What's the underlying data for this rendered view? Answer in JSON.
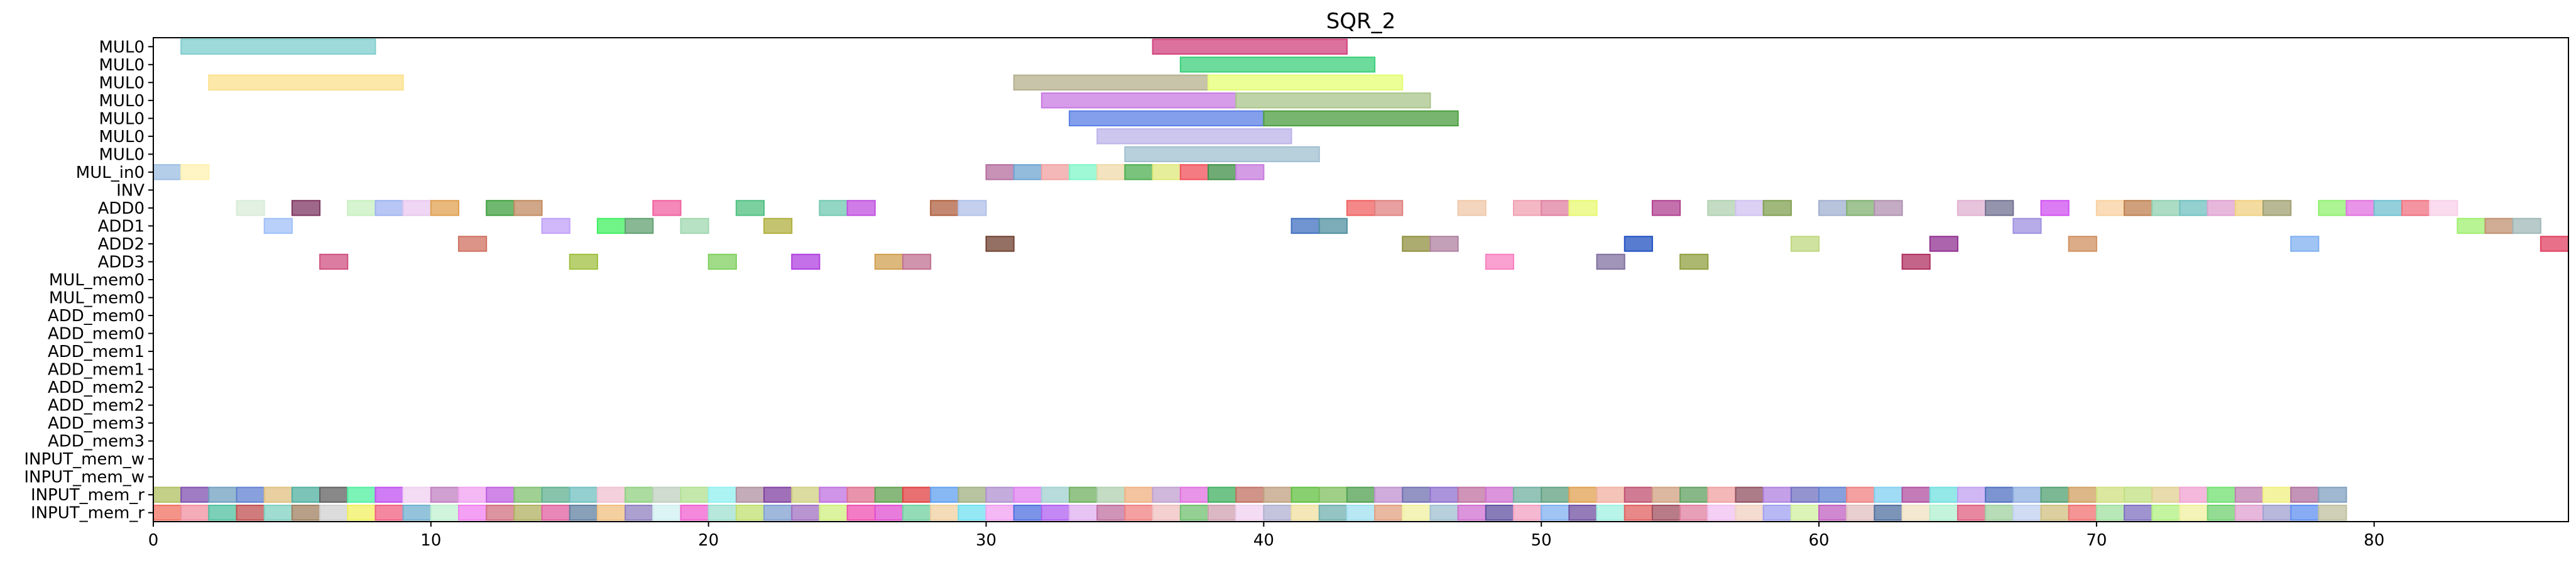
{
  "chart_data": {
    "type": "gantt",
    "title": "SQR_2",
    "xlabel": "",
    "ylabel": "",
    "xlim": [
      0,
      87
    ],
    "xticks": [
      0,
      10,
      20,
      30,
      40,
      50,
      60,
      70,
      80
    ],
    "grid": false,
    "rows": [
      "MUL0",
      "MUL0",
      "MUL0",
      "MUL0",
      "MUL0",
      "MUL0",
      "MUL0",
      "MUL_in0",
      "INV",
      "ADD0",
      "ADD1",
      "ADD2",
      "ADD3",
      "MUL_mem0",
      "MUL_mem0",
      "ADD_mem0",
      "ADD_mem0",
      "ADD_mem1",
      "ADD_mem1",
      "ADD_mem2",
      "ADD_mem2",
      "ADD_mem3",
      "ADD_mem3",
      "INPUT_mem_w",
      "INPUT_mem_w",
      "INPUT_mem_r",
      "INPUT_mem_r"
    ],
    "bars": [
      {
        "row": 0,
        "start": 1,
        "end": 8,
        "color": "#7fcdcd"
      },
      {
        "row": 0,
        "start": 36,
        "end": 43,
        "color": "#d1427e"
      },
      {
        "row": 1,
        "start": 37,
        "end": 44,
        "color": "#3ccf79"
      },
      {
        "row": 2,
        "start": 2,
        "end": 9,
        "color": "#fbe08c"
      },
      {
        "row": 2,
        "start": 31,
        "end": 38,
        "color": "#b6b08e"
      },
      {
        "row": 2,
        "start": 38,
        "end": 45,
        "color": "#e5fd73"
      },
      {
        "row": 3,
        "start": 32,
        "end": 39,
        "color": "#c87ae1"
      },
      {
        "row": 3,
        "start": 39,
        "end": 46,
        "color": "#a9c48b"
      },
      {
        "row": 4,
        "start": 33,
        "end": 40,
        "color": "#5a7fe6"
      },
      {
        "row": 4,
        "start": 40,
        "end": 47,
        "color": "#4b9e3f"
      },
      {
        "row": 5,
        "start": 34,
        "end": 41,
        "color": "#bcb3ea"
      },
      {
        "row": 6,
        "start": 35,
        "end": 42,
        "color": "#a0bfd0"
      },
      {
        "row": 7,
        "start": 0,
        "end": 1,
        "color": "#9bbde3"
      },
      {
        "row": 7,
        "start": 1,
        "end": 2,
        "color": "#fff2b0"
      },
      {
        "row": 7,
        "start": 30,
        "end": 31,
        "color": "#b46e9e"
      },
      {
        "row": 7,
        "start": 31,
        "end": 32,
        "color": "#6ea4d0"
      },
      {
        "row": 7,
        "start": 32,
        "end": 33,
        "color": "#f0a0a0"
      },
      {
        "row": 7,
        "start": 33,
        "end": 34,
        "color": "#7ff5c8"
      },
      {
        "row": 7,
        "start": 34,
        "end": 35,
        "color": "#efd9a8"
      },
      {
        "row": 7,
        "start": 35,
        "end": 36,
        "color": "#4caf50"
      },
      {
        "row": 7,
        "start": 36,
        "end": 37,
        "color": "#dfe87a"
      },
      {
        "row": 7,
        "start": 37,
        "end": 38,
        "color": "#f24f5a"
      },
      {
        "row": 7,
        "start": 38,
        "end": 39,
        "color": "#3f8f45"
      },
      {
        "row": 7,
        "start": 39,
        "end": 40,
        "color": "#c77bde"
      },
      {
        "row": 9,
        "start": 3,
        "end": 4,
        "color": "#d8ecd8"
      },
      {
        "row": 9,
        "start": 5,
        "end": 6,
        "color": "#7e3560"
      },
      {
        "row": 9,
        "start": 7,
        "end": 8,
        "color": "#c8f0c0"
      },
      {
        "row": 9,
        "start": 8,
        "end": 9,
        "color": "#9fb3f0"
      },
      {
        "row": 9,
        "start": 9,
        "end": 10,
        "color": "#e8c8f0"
      },
      {
        "row": 9,
        "start": 10,
        "end": 11,
        "color": "#e0a050"
      },
      {
        "row": 9,
        "start": 12,
        "end": 13,
        "color": "#40a040"
      },
      {
        "row": 9,
        "start": 13,
        "end": 14,
        "color": "#c08a60"
      },
      {
        "row": 9,
        "start": 18,
        "end": 19,
        "color": "#f060a0"
      },
      {
        "row": 9,
        "start": 21,
        "end": 22,
        "color": "#50c080"
      },
      {
        "row": 9,
        "start": 24,
        "end": 25,
        "color": "#70c8b0"
      },
      {
        "row": 9,
        "start": 25,
        "end": 26,
        "color": "#c050e0"
      },
      {
        "row": 9,
        "start": 28,
        "end": 29,
        "color": "#b06040"
      },
      {
        "row": 9,
        "start": 29,
        "end": 30,
        "color": "#b0c0e8"
      },
      {
        "row": 9,
        "start": 43,
        "end": 44,
        "color": "#f06060"
      },
      {
        "row": 9,
        "start": 44,
        "end": 45,
        "color": "#e08080"
      },
      {
        "row": 9,
        "start": 47,
        "end": 48,
        "color": "#f0c8a8"
      },
      {
        "row": 9,
        "start": 49,
        "end": 50,
        "color": "#f0a0b0"
      },
      {
        "row": 9,
        "start": 50,
        "end": 51,
        "color": "#e080a0"
      },
      {
        "row": 9,
        "start": 51,
        "end": 52,
        "color": "#e8f870"
      },
      {
        "row": 9,
        "start": 54,
        "end": 55,
        "color": "#b04090"
      },
      {
        "row": 9,
        "start": 56,
        "end": 57,
        "color": "#b0d0b0"
      },
      {
        "row": 9,
        "start": 57,
        "end": 58,
        "color": "#d0c0f0"
      },
      {
        "row": 9,
        "start": 58,
        "end": 59,
        "color": "#80a050"
      },
      {
        "row": 9,
        "start": 60,
        "end": 61,
        "color": "#a0b0d0"
      },
      {
        "row": 9,
        "start": 61,
        "end": 62,
        "color": "#80b070"
      },
      {
        "row": 9,
        "start": 62,
        "end": 63,
        "color": "#b090b0"
      },
      {
        "row": 9,
        "start": 65,
        "end": 66,
        "color": "#e0b0d0"
      },
      {
        "row": 9,
        "start": 66,
        "end": 67,
        "color": "#707090"
      },
      {
        "row": 9,
        "start": 68,
        "end": 69,
        "color": "#d050f0"
      },
      {
        "row": 9,
        "start": 70,
        "end": 71,
        "color": "#f8d0a0"
      },
      {
        "row": 9,
        "start": 71,
        "end": 72,
        "color": "#c08050"
      },
      {
        "row": 9,
        "start": 72,
        "end": 73,
        "color": "#90d0b0"
      },
      {
        "row": 9,
        "start": 73,
        "end": 74,
        "color": "#70c0c0"
      },
      {
        "row": 9,
        "start": 74,
        "end": 75,
        "color": "#e0a0d0"
      },
      {
        "row": 9,
        "start": 75,
        "end": 76,
        "color": "#f0d080"
      },
      {
        "row": 9,
        "start": 76,
        "end": 77,
        "color": "#a0a070"
      },
      {
        "row": 9,
        "start": 78,
        "end": 79,
        "color": "#90f070"
      },
      {
        "row": 9,
        "start": 79,
        "end": 80,
        "color": "#e070e0"
      },
      {
        "row": 9,
        "start": 80,
        "end": 81,
        "color": "#70c0d0"
      },
      {
        "row": 9,
        "start": 81,
        "end": 82,
        "color": "#f07080"
      },
      {
        "row": 9,
        "start": 82,
        "end": 83,
        "color": "#f8d0e8"
      },
      {
        "row": 10,
        "start": 4,
        "end": 5,
        "color": "#a0c0f8"
      },
      {
        "row": 10,
        "start": 14,
        "end": 15,
        "color": "#c0a0f8"
      },
      {
        "row": 10,
        "start": 16,
        "end": 17,
        "color": "#40f060"
      },
      {
        "row": 10,
        "start": 17,
        "end": 18,
        "color": "#60a070"
      },
      {
        "row": 10,
        "start": 19,
        "end": 20,
        "color": "#a0d8b0"
      },
      {
        "row": 10,
        "start": 22,
        "end": 23,
        "color": "#b0b040"
      },
      {
        "row": 10,
        "start": 41,
        "end": 42,
        "color": "#4070c0"
      },
      {
        "row": 10,
        "start": 42,
        "end": 43,
        "color": "#5090a0"
      },
      {
        "row": 10,
        "start": 67,
        "end": 68,
        "color": "#a090e0"
      },
      {
        "row": 10,
        "start": 83,
        "end": 84,
        "color": "#a0f070"
      },
      {
        "row": 10,
        "start": 84,
        "end": 85,
        "color": "#c09070"
      },
      {
        "row": 10,
        "start": 85,
        "end": 86,
        "color": "#a0b8b8"
      },
      {
        "row": 11,
        "start": 11,
        "end": 12,
        "color": "#d07060"
      },
      {
        "row": 11,
        "start": 30,
        "end": 31,
        "color": "#704030"
      },
      {
        "row": 11,
        "start": 45,
        "end": 46,
        "color": "#909040"
      },
      {
        "row": 11,
        "start": 46,
        "end": 47,
        "color": "#b080a0"
      },
      {
        "row": 11,
        "start": 53,
        "end": 54,
        "color": "#2050c0"
      },
      {
        "row": 11,
        "start": 59,
        "end": 60,
        "color": "#c0d880"
      },
      {
        "row": 11,
        "start": 64,
        "end": 65,
        "color": "#903090"
      },
      {
        "row": 11,
        "start": 69,
        "end": 70,
        "color": "#d09060"
      },
      {
        "row": 11,
        "start": 77,
        "end": 78,
        "color": "#80b0f0"
      },
      {
        "row": 11,
        "start": 86,
        "end": 87,
        "color": "#e04060"
      },
      {
        "row": 12,
        "start": 6,
        "end": 7,
        "color": "#d05080"
      },
      {
        "row": 12,
        "start": 15,
        "end": 16,
        "color": "#a0c040"
      },
      {
        "row": 12,
        "start": 20,
        "end": 21,
        "color": "#80d060"
      },
      {
        "row": 12,
        "start": 23,
        "end": 24,
        "color": "#b040e0"
      },
      {
        "row": 12,
        "start": 26,
        "end": 27,
        "color": "#d0a050"
      },
      {
        "row": 12,
        "start": 27,
        "end": 28,
        "color": "#c07090"
      },
      {
        "row": 12,
        "start": 48,
        "end": 49,
        "color": "#f880c0"
      },
      {
        "row": 12,
        "start": 52,
        "end": 53,
        "color": "#8070a0"
      },
      {
        "row": 12,
        "start": 55,
        "end": 56,
        "color": "#90a040"
      },
      {
        "row": 12,
        "start": 63,
        "end": 64,
        "color": "#b03060"
      }
    ],
    "input_rows": {
      "row_a": 25,
      "row_b": 26,
      "colors_a": [
        "#b0c060",
        "#8050b0",
        "#70a0c0",
        "#6080d0",
        "#e0c080",
        "#50b0a0",
        "#606060",
        "#50f0a0",
        "#c050f0",
        "#f0d0f0",
        "#c080c0",
        "#f0a0f0",
        "#c060e0",
        "#80c070",
        "#60b090",
        "#70c0c0",
        "#f0c0d0",
        "#90d080",
        "#c0d0c0",
        "#b0e090",
        "#90f0f0",
        "#b090a0",
        "#8040a0",
        "#d0d080",
        "#c070e0",
        "#e07090",
        "#60a050",
        "#e04040",
        "#60a0f0",
        "#a0b080",
        "#b090d0",
        "#e080f0",
        "#a0d0d0",
        "#70b060",
        "#b0d0b0",
        "#f0b080",
        "#c0a0d0",
        "#e070e0",
        "#40b060",
        "#c07060",
        "#c0a080",
        "#60c040",
        "#80c060",
        "#50a050",
        "#c090d0",
        "#7070b0",
        "#9070d0",
        "#c070a0",
        "#d070d0",
        "#70b0a0",
        "#60a080",
        "#e0a050",
        "#f0b0a0",
        "#c05070",
        "#d0a080",
        "#60a060",
        "#f0a0a0",
        "#905060",
        "#b080e0",
        "#7070c0",
        "#6080d0",
        "#f08080",
        "#80d0f0",
        "#b050a0",
        "#70e0e0",
        "#c0a0f0",
        "#5070c0",
        "#90b0e0",
        "#50a070",
        "#d0a060",
        "#d0e080",
        "#c0e080",
        "#e0d090",
        "#f0a0d0",
        "#70e070",
        "#c080b0",
        "#f0f080",
        "#b070a0",
        "#80a0c0"
      ],
      "colors_b": [
        "#f07060",
        "#f090a0",
        "#50c0a0",
        "#c05050",
        "#80d0c0",
        "#a08060",
        "#d0d0d0",
        "#f0f060",
        "#f06080",
        "#70b0d0",
        "#c0f0d0",
        "#f080f0",
        "#d07080",
        "#b0b060",
        "#e060a0",
        "#6080a0",
        "#f0c080",
        "#9080c0",
        "#d0f0f0",
        "#f060d0",
        "#a0e0d0",
        "#c0e070",
        "#80a0d0",
        "#a070c0",
        "#d0f080",
        "#f050b0",
        "#e050d0",
        "#70d0a0",
        "#f0d0a0",
        "#70e0f0",
        "#f0a0f0",
        "#5070e0",
        "#b060f0",
        "#e0b0f0",
        "#c070a0",
        "#f08080",
        "#f0c0c0",
        "#70c070",
        "#d0a0b0",
        "#f0d0f0",
        "#b0b0d0",
        "#f0e0a0",
        "#70b0b0",
        "#a0e0f0",
        "#e0a080",
        "#f0f0a0",
        "#a0c0d0",
        "#d070d0",
        "#6050a0",
        "#f0a0c0",
        "#80b0f0",
        "#7050a0",
        "#a0f0e0",
        "#e06060",
        "#a05060",
        "#e080a0",
        "#f0c0f0",
        "#f0d0c0",
        "#a0a0f0",
        "#d0f0a0",
        "#c060c0",
        "#e0c0c0",
        "#5070a0",
        "#f0e0c0",
        "#b0f0d0",
        "#e06080",
        "#a0d0a0",
        "#c0d0f0",
        "#d0c080",
        "#f07070",
        "#a0e0a0",
        "#8070c0",
        "#b0f080",
        "#f0f0a0",
        "#70d070",
        "#e0a0d0",
        "#a0a0d0",
        "#6090f0",
        "#c0c0a0"
      ]
    }
  }
}
